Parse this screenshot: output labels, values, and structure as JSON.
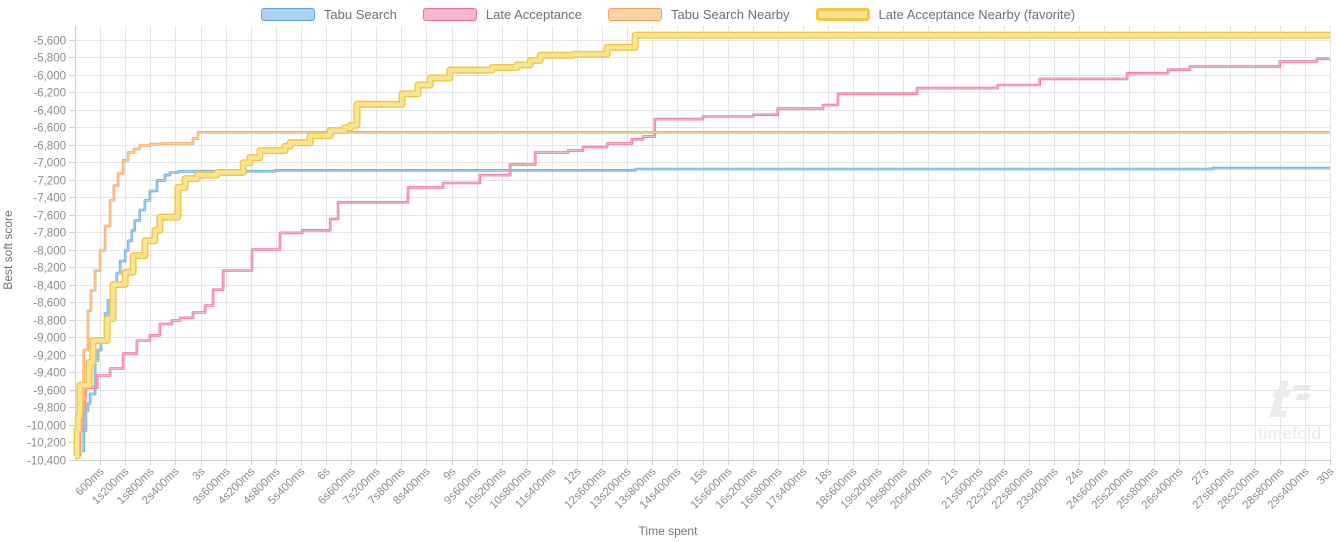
{
  "legend": {
    "items": [
      {
        "id": "tabu-search",
        "label": "Tabu Search",
        "favorite": false
      },
      {
        "id": "late-acceptance",
        "label": "Late Acceptance",
        "favorite": false
      },
      {
        "id": "tabu-search-nearby",
        "label": "Tabu Search Nearby",
        "favorite": false
      },
      {
        "id": "late-acceptance-nearby",
        "label": "Late Acceptance Nearby (favorite)",
        "favorite": true
      }
    ]
  },
  "axes": {
    "y": {
      "title": "Best soft score",
      "max": -5600,
      "min": -10400,
      "step": -200,
      "tick_labels": [
        "-5,600",
        "-5,800",
        "-6,000",
        "-6,200",
        "-6,400",
        "-6,600",
        "-6,800",
        "-7,000",
        "-7,200",
        "-7,400",
        "-7,600",
        "-7,800",
        "-8,000",
        "-8,200",
        "-8,400",
        "-8,600",
        "-8,800",
        "-9,000",
        "-9,200",
        "-9,400",
        "-9,600",
        "-9,800",
        "-10,000",
        "-10,200",
        "-10,400"
      ]
    },
    "x": {
      "title": "Time spent",
      "min_ms": 0,
      "max_ms": 30000,
      "step_ms": 600,
      "tick_labels": [
        "600ms",
        "1s200ms",
        "1s800ms",
        "2s400ms",
        "3s",
        "3s600ms",
        "4s200ms",
        "4s800ms",
        "5s400ms",
        "6s",
        "6s600ms",
        "7s200ms",
        "7s800ms",
        "8s400ms",
        "9s",
        "9s600ms",
        "10s200ms",
        "10s800ms",
        "11s400ms",
        "12s",
        "12s600ms",
        "13s200ms",
        "13s800ms",
        "14s400ms",
        "15s",
        "15s600ms",
        "16s200ms",
        "16s800ms",
        "17s400ms",
        "18s",
        "18s600ms",
        "19s200ms",
        "19s800ms",
        "20s400ms",
        "21s",
        "21s600ms",
        "22s200ms",
        "22s800ms",
        "23s400ms",
        "24s",
        "24s600ms",
        "25s200ms",
        "25s800ms",
        "26s400ms",
        "27s",
        "27s600ms",
        "28s200ms",
        "28s800ms",
        "29s400ms",
        "30s"
      ]
    }
  },
  "chart_data": {
    "type": "line",
    "step_interpolation": "step-after",
    "title": "",
    "xlabel": "Time spent",
    "ylabel": "Best soft score",
    "xlim_seconds": [
      0,
      30
    ],
    "ylim": [
      -10400,
      -5600
    ],
    "grid": true,
    "legend_position": "top-center",
    "series": [
      {
        "id": "tabu-search",
        "name": "Tabu Search",
        "stroke": "#5FA2DB",
        "light": "#ACD4F1",
        "line_width": "normal",
        "points": [
          [
            0.17,
            -10300
          ],
          [
            0.21,
            -10070
          ],
          [
            0.26,
            -9840
          ],
          [
            0.31,
            -9760
          ],
          [
            0.36,
            -9650
          ],
          [
            0.48,
            -9270
          ],
          [
            0.55,
            -9150
          ],
          [
            0.62,
            -9040
          ],
          [
            0.72,
            -8730
          ],
          [
            0.79,
            -8580
          ],
          [
            0.88,
            -8430
          ],
          [
            1.0,
            -8270
          ],
          [
            1.08,
            -8130
          ],
          [
            1.2,
            -8010
          ],
          [
            1.27,
            -7900
          ],
          [
            1.36,
            -7780
          ],
          [
            1.43,
            -7670
          ],
          [
            1.55,
            -7550
          ],
          [
            1.67,
            -7440
          ],
          [
            1.79,
            -7330
          ],
          [
            1.96,
            -7210
          ],
          [
            2.15,
            -7150
          ],
          [
            2.27,
            -7120
          ],
          [
            2.46,
            -7110
          ],
          [
            3.0,
            -7105
          ],
          [
            4.78,
            -7095
          ],
          [
            13.4,
            -7080
          ],
          [
            27.2,
            -7070
          ],
          [
            30,
            -7070
          ]
        ]
      },
      {
        "id": "late-acceptance",
        "name": "Late Acceptance",
        "stroke": "#EC6A95",
        "light": "#F7B7CB",
        "line_width": "normal",
        "points": [
          [
            0.02,
            -10350
          ],
          [
            0.12,
            -10070
          ],
          [
            0.19,
            -9840
          ],
          [
            0.24,
            -9670
          ],
          [
            0.26,
            -9580
          ],
          [
            0.53,
            -9440
          ],
          [
            0.84,
            -9360
          ],
          [
            1.15,
            -9190
          ],
          [
            1.48,
            -9040
          ],
          [
            1.79,
            -8980
          ],
          [
            2.03,
            -8850
          ],
          [
            2.32,
            -8810
          ],
          [
            2.51,
            -8780
          ],
          [
            2.82,
            -8720
          ],
          [
            3.11,
            -8640
          ],
          [
            3.3,
            -8460
          ],
          [
            3.54,
            -8240
          ],
          [
            4.23,
            -8000
          ],
          [
            4.9,
            -7810
          ],
          [
            5.43,
            -7780
          ],
          [
            6.1,
            -7650
          ],
          [
            6.29,
            -7460
          ],
          [
            7.96,
            -7290
          ],
          [
            8.8,
            -7240
          ],
          [
            9.68,
            -7150
          ],
          [
            10.4,
            -7030
          ],
          [
            11.0,
            -6890
          ],
          [
            11.79,
            -6870
          ],
          [
            12.14,
            -6830
          ],
          [
            12.72,
            -6790
          ],
          [
            13.31,
            -6740
          ],
          [
            13.58,
            -6710
          ],
          [
            13.86,
            -6510
          ],
          [
            15.01,
            -6480
          ],
          [
            16.21,
            -6460
          ],
          [
            16.8,
            -6390
          ],
          [
            17.88,
            -6350
          ],
          [
            18.24,
            -6220
          ],
          [
            20.13,
            -6155
          ],
          [
            22.06,
            -6120
          ],
          [
            23.06,
            -6050
          ],
          [
            25.15,
            -5985
          ],
          [
            26.13,
            -5945
          ],
          [
            26.65,
            -5910
          ],
          [
            28.8,
            -5850
          ],
          [
            29.69,
            -5820
          ],
          [
            30,
            -5820
          ]
        ]
      },
      {
        "id": "tabu-search-nearby",
        "name": "Tabu Search Nearby",
        "stroke": "#F0A356",
        "light": "#F9D3A4",
        "line_width": "normal",
        "points": [
          [
            0.02,
            -10350
          ],
          [
            0.07,
            -10070
          ],
          [
            0.12,
            -9730
          ],
          [
            0.21,
            -9150
          ],
          [
            0.31,
            -8700
          ],
          [
            0.38,
            -8470
          ],
          [
            0.48,
            -8240
          ],
          [
            0.6,
            -8010
          ],
          [
            0.72,
            -7730
          ],
          [
            0.84,
            -7440
          ],
          [
            0.93,
            -7270
          ],
          [
            1.03,
            -7130
          ],
          [
            1.15,
            -6980
          ],
          [
            1.27,
            -6890
          ],
          [
            1.41,
            -6850
          ],
          [
            1.55,
            -6810
          ],
          [
            1.79,
            -6795
          ],
          [
            2.08,
            -6790
          ],
          [
            2.82,
            -6730
          ],
          [
            2.94,
            -6660
          ],
          [
            30,
            -6660
          ]
        ]
      },
      {
        "id": "late-acceptance-nearby",
        "name": "Late Acceptance Nearby (favorite)",
        "stroke": "#F3C640",
        "light": "#FAE494",
        "line_width": "wide",
        "points": [
          [
            0.02,
            -10360
          ],
          [
            0.05,
            -10070
          ],
          [
            0.08,
            -9900
          ],
          [
            0.12,
            -9550
          ],
          [
            0.34,
            -9290
          ],
          [
            0.43,
            -9040
          ],
          [
            0.77,
            -8790
          ],
          [
            0.91,
            -8400
          ],
          [
            1.2,
            -8260
          ],
          [
            1.39,
            -8070
          ],
          [
            1.67,
            -7900
          ],
          [
            1.91,
            -7780
          ],
          [
            2.03,
            -7630
          ],
          [
            2.46,
            -7290
          ],
          [
            2.63,
            -7190
          ],
          [
            2.92,
            -7150
          ],
          [
            3.39,
            -7120
          ],
          [
            4.02,
            -7010
          ],
          [
            4.18,
            -6950
          ],
          [
            4.42,
            -6870
          ],
          [
            5.02,
            -6820
          ],
          [
            5.14,
            -6780
          ],
          [
            5.62,
            -6700
          ],
          [
            6.1,
            -6640
          ],
          [
            6.45,
            -6610
          ],
          [
            6.58,
            -6580
          ],
          [
            6.74,
            -6340
          ],
          [
            7.82,
            -6220
          ],
          [
            8.2,
            -6120
          ],
          [
            8.49,
            -6040
          ],
          [
            8.96,
            -5950
          ],
          [
            9.97,
            -5920
          ],
          [
            10.57,
            -5890
          ],
          [
            10.88,
            -5840
          ],
          [
            11.12,
            -5780
          ],
          [
            11.9,
            -5770
          ],
          [
            12.72,
            -5690
          ],
          [
            13.39,
            -5550
          ],
          [
            30,
            -5550
          ]
        ]
      }
    ]
  },
  "watermark": {
    "text": "timefold"
  },
  "colors": {
    "background": "#ffffff",
    "grid": "#e5e5e5",
    "axis_line": "#cfcfcf",
    "tick_text": "#8c8c8c",
    "axis_title_text": "#757575",
    "legend_text": "#707070",
    "watermark": "#ebebeb"
  }
}
